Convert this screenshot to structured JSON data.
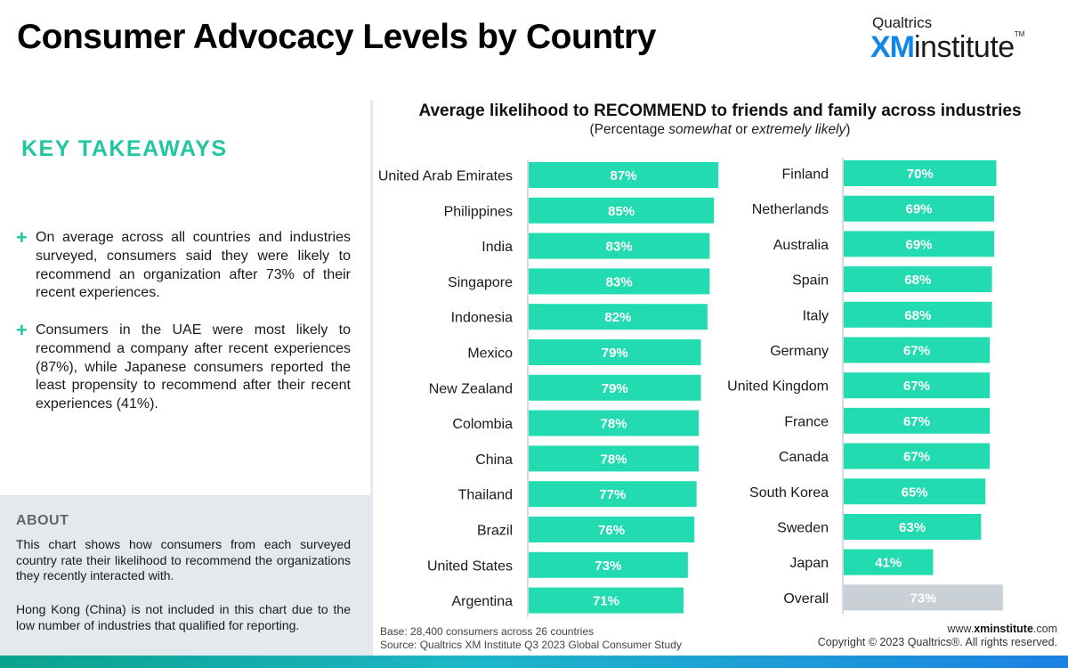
{
  "header": {
    "title": "Consumer Advocacy Levels by Country",
    "logo_brand": "Qualtrics",
    "logo_xm": "XM",
    "logo_institute": "institute",
    "logo_tm": "TM"
  },
  "takeaways": {
    "title": "KEY TAKEAWAYS",
    "bullets": [
      "On average across all countries and industries surveyed, consumers said they were likely to recommend an organization after 73% of their recent experiences.",
      "Consumers in the UAE were most likely to recommend a company after recent experiences (87%), while Japanese consumers reported the least propensity to recommend after their recent experiences (41%)."
    ]
  },
  "about": {
    "title": "ABOUT",
    "paragraphs": [
      "This chart shows how consumers from each surveyed country rate their likelihood to recommend the organizations they recently interacted with.",
      "Hong Kong (China) is not included in this chart due to the low number of industries that qualified for reporting."
    ]
  },
  "chart_data": {
    "type": "bar",
    "orientation": "horizontal",
    "title": "Average likelihood to RECOMMEND to friends and family across industries",
    "subtitle_prefix": "(Percentage ",
    "subtitle_em1": "somewhat",
    "subtitle_mid": " or ",
    "subtitle_em2": "extremely likely",
    "subtitle_suffix": ")",
    "unit": "%",
    "xlim": [
      0,
      100
    ],
    "bar_color": "#22dbb0",
    "overall_color": "#c9d0d6",
    "panels": [
      {
        "categories": [
          "United Arab Emirates",
          "Philippines",
          "India",
          "Singapore",
          "Indonesia",
          "Mexico",
          "New Zealand",
          "Colombia",
          "China",
          "Thailand",
          "Brazil",
          "United States",
          "Argentina"
        ],
        "values": [
          87,
          85,
          83,
          83,
          82,
          79,
          79,
          78,
          78,
          77,
          76,
          73,
          71
        ]
      },
      {
        "categories": [
          "Finland",
          "Netherlands",
          "Australia",
          "Spain",
          "Italy",
          "Germany",
          "United Kingdom",
          "France",
          "Canada",
          "South Korea",
          "Sweden",
          "Japan",
          "Overall"
        ],
        "values": [
          70,
          69,
          69,
          68,
          68,
          67,
          67,
          67,
          67,
          65,
          63,
          41,
          73
        ]
      }
    ]
  },
  "footer": {
    "base": "Base: 28,400 consumers across 26 countries",
    "source_prefix": "Source: Qualtrics ",
    "source_xm": "XM Institute",
    "source_suffix": " Q3 2023 Global Consumer Study",
    "site_prefix": "www.",
    "site_bold": "xminstitute",
    "site_suffix": ".com",
    "copyright": "Copyright © 2023 Qualtrics®. All rights reserved."
  }
}
